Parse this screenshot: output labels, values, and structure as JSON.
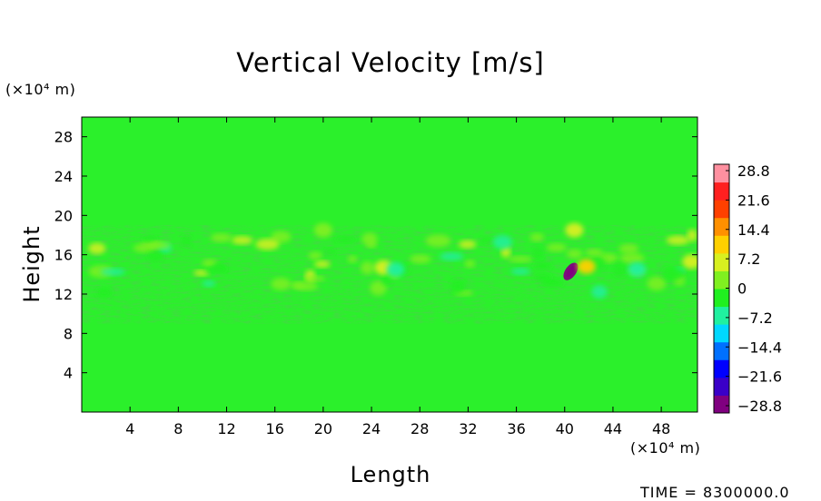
{
  "chart_data": {
    "type": "heatmap",
    "title": "Vertical Velocity [m/s]",
    "xlabel": "Length",
    "ylabel": "Height",
    "x_unit_note": "(×10⁴ m)",
    "y_unit_note": "(×10⁴ m)",
    "xlim": [
      0,
      51
    ],
    "ylim": [
      0,
      30
    ],
    "x_ticks": [
      4,
      8,
      12,
      16,
      20,
      24,
      28,
      32,
      36,
      40,
      44,
      48
    ],
    "y_ticks": [
      4,
      8,
      12,
      16,
      20,
      24,
      28
    ],
    "colorbar": {
      "label": "m/s",
      "range": [
        -28.8,
        28.8
      ],
      "tick_values": [
        28.8,
        21.6,
        14.4,
        7.2,
        0,
        -7.2,
        -14.4,
        -21.6,
        -28.8
      ],
      "tick_labels": [
        "28.8",
        "21.6",
        "14.4",
        "7.2",
        "0",
        "−7.2",
        "−14.4",
        "−21.6",
        "−28.8"
      ]
    },
    "field_description_values": {
      "background": 0,
      "active_layer_height_range": [
        9,
        19
      ],
      "features": [
        {
          "x": 40.5,
          "y": 14.3,
          "value": -26
        },
        {
          "x": 41.8,
          "y": 14.8,
          "value": 11
        },
        {
          "x": 40.8,
          "y": 18.5,
          "value": 8
        },
        {
          "x": 25,
          "y": 14.7,
          "value": 6
        },
        {
          "x": 26,
          "y": 14.5,
          "value": -8
        },
        {
          "x": 50.5,
          "y": 15.3,
          "value": 7
        },
        {
          "x": 46,
          "y": 14.5,
          "value": -7
        },
        {
          "x": 20,
          "y": 18.5,
          "value": 4
        }
      ]
    }
  },
  "time_label": "TIME = 8300000.0"
}
